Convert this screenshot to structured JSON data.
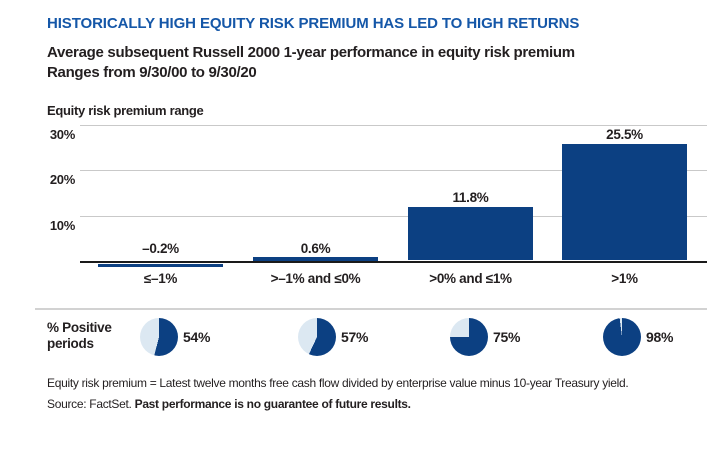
{
  "title": "HISTORICALLY HIGH EQUITY RISK PREMIUM HAS LED TO HIGH RETURNS",
  "subtitle_line1": "Average subsequent Russell 2000 1-year performance in equity risk premium",
  "subtitle_line2": "Ranges from 9/30/00 to 9/30/20",
  "axis_section_label": "Equity risk premium range",
  "chart_data": {
    "type": "bar",
    "title": "Average subsequent Russell 2000 1-year performance in equity risk premium ranges from 9/30/00 to 9/30/20",
    "categories": [
      "≤–1%",
      ">–1% and ≤0%",
      ">0% and ≤1%",
      ">1%"
    ],
    "values": [
      -0.2,
      0.6,
      11.8,
      25.5
    ],
    "value_labels": [
      "–0.2%",
      "0.6%",
      "11.8%",
      "25.5%"
    ],
    "yticks": [
      30,
      20,
      10
    ],
    "ytick_labels": [
      "30%",
      "20%",
      "10%"
    ],
    "ylim": [
      0,
      30
    ],
    "grid": true,
    "legend": "none",
    "positive_periods": {
      "label_line1": "% Positive",
      "label_line2": "periods",
      "values": [
        54,
        57,
        75,
        98
      ],
      "labels": [
        "54%",
        "57%",
        "75%",
        "98%"
      ]
    }
  },
  "footnote_line1": "Equity risk premium = Latest twelve months free cash flow divided by enterprise value minus 10-year Treasury yield.",
  "footnote_line2_regular": "Source: FactSet. ",
  "footnote_line2_bold": "Past performance is no guarantee of future results.",
  "colors": {
    "title_blue": "#1557a8",
    "bar_blue": "#0c4082",
    "pie_dark_blue": "#0c4082",
    "pie_light_blue": "#dce8f2",
    "grid_gray": "#c9c9c9",
    "text_black": "#231f20"
  }
}
